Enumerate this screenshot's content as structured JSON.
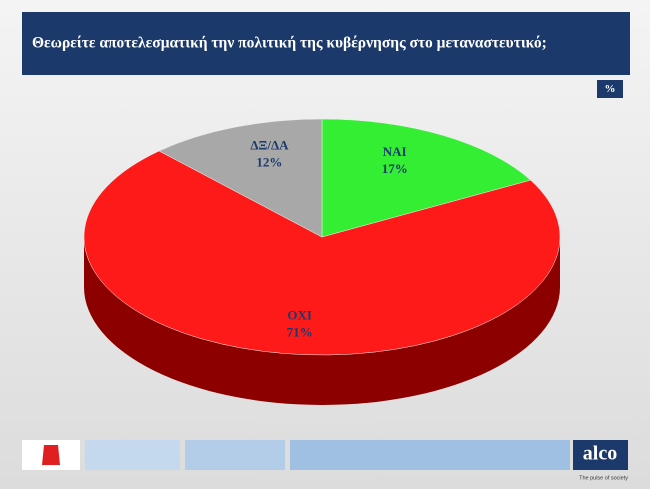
{
  "chart_data": {
    "type": "pie",
    "title": "Θεωρείτε αποτελεσματική την πολιτική της κυβέρνησης στο μεταναστευτικό;",
    "unit": "%",
    "categories": [
      "ΝΑΙ",
      "ΟΧΙ",
      "ΔΞ/ΔΑ"
    ],
    "values": [
      17,
      71,
      12
    ],
    "value_labels": [
      "17%",
      "71%",
      "12%"
    ],
    "colors": [
      "#33ee33",
      "#ff1a1a",
      "#a8a8a8"
    ],
    "side_colors": [
      "#1a991a",
      "#8c0000",
      "#666666"
    ]
  },
  "footer": {
    "brand": "alco",
    "tagline": "The pulse of society"
  }
}
